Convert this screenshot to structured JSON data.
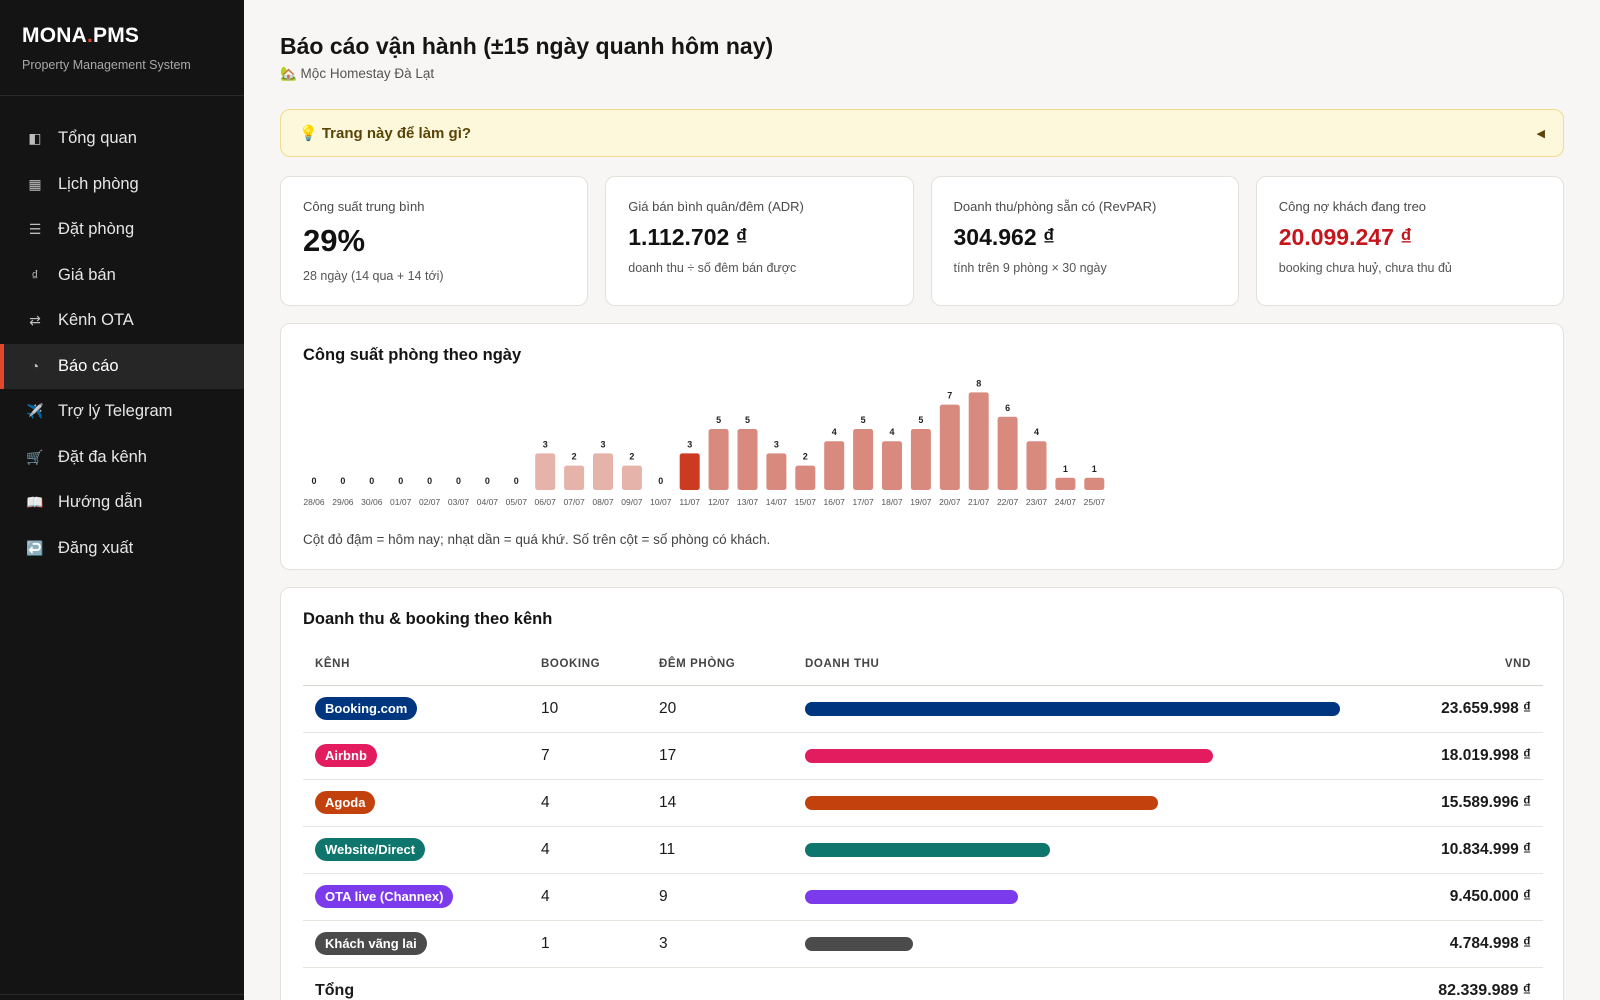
{
  "brand": {
    "name_main": "MONA",
    "name_dot": ".",
    "name_suffix": "PMS",
    "subtitle": "Property Management System"
  },
  "nav": [
    {
      "label": "Tổng quan",
      "icon": "◧",
      "icon_name": "dashboard-icon",
      "active": false
    },
    {
      "label": "Lịch phòng",
      "icon": "▦",
      "icon_name": "calendar-icon",
      "active": false
    },
    {
      "label": "Đặt phòng",
      "icon": "☰",
      "icon_name": "list-icon",
      "active": false
    },
    {
      "label": "Giá bán",
      "icon": "₫",
      "icon_name": "price-icon",
      "active": false
    },
    {
      "label": "Kênh OTA",
      "icon": "⇄",
      "icon_name": "swap-icon",
      "active": false
    },
    {
      "label": "Báo cáo",
      "icon": "◔",
      "icon_name": "pie-chart-icon",
      "active": true
    },
    {
      "label": "Trợ lý Telegram",
      "icon": "✈️",
      "icon_name": "plane-icon",
      "active": false
    },
    {
      "label": "Đặt đa kênh",
      "icon": "🛒",
      "icon_name": "cart-icon",
      "active": false
    },
    {
      "label": "Hướng dẫn",
      "icon": "📖",
      "icon_name": "book-icon",
      "active": false
    },
    {
      "label": "Đăng xuất",
      "icon": "↩️",
      "icon_name": "logout-icon",
      "active": false
    }
  ],
  "header": {
    "title": "Báo cáo vận hành (±15 ngày quanh hôm nay)",
    "property": "🏡 Mộc Homestay Đà Lạt"
  },
  "help": {
    "text": "💡 Trang này để làm gì?",
    "caret": "◀"
  },
  "kpis": [
    {
      "label": "Công suất trung bình",
      "value": "29%",
      "note": "28 ngày (14 qua + 14 tới)",
      "style": "big"
    },
    {
      "label": "Giá bán bình quân/đêm (ADR)",
      "value": "1.112.702 ₫",
      "note": "doanh thu ÷ số đêm bán được",
      "style": "normal"
    },
    {
      "label": "Doanh thu/phòng sẵn có (RevPAR)",
      "value": "304.962 ₫",
      "note": "tính trên 9 phòng × 30 ngày",
      "style": "normal"
    },
    {
      "label": "Công nợ khách đang treo",
      "value": "20.099.247 ₫",
      "note": "booking chưa huỷ, chưa thu đủ",
      "style": "red"
    }
  ],
  "occupancy": {
    "title": "Công suất phòng theo ngày",
    "note": "Cột đỏ đậm = hôm nay; nhạt dần = quá khứ. Số trên cột = số phòng có khách."
  },
  "chart_data": {
    "type": "bar",
    "categories": [
      "28/06",
      "29/06",
      "30/06",
      "01/07",
      "02/07",
      "03/07",
      "04/07",
      "05/07",
      "06/07",
      "07/07",
      "08/07",
      "09/07",
      "10/07",
      "11/07",
      "12/07",
      "13/07",
      "14/07",
      "15/07",
      "16/07",
      "17/07",
      "18/07",
      "19/07",
      "20/07",
      "21/07",
      "22/07",
      "23/07",
      "24/07",
      "25/07"
    ],
    "values": [
      0,
      0,
      0,
      0,
      0,
      0,
      0,
      0,
      3,
      2,
      3,
      2,
      0,
      3,
      5,
      5,
      3,
      2,
      4,
      5,
      4,
      5,
      7,
      8,
      6,
      4,
      1,
      1
    ],
    "today_index": 13,
    "colors": {
      "past": "#e6b3aa",
      "today": "#cc3a22",
      "future": "#d98a7e"
    },
    "grid": false,
    "legend": "none"
  },
  "channels": {
    "title": "Doanh thu & booking theo kênh",
    "headers": {
      "channel": "KÊNH",
      "booking": "BOOKING",
      "nights": "ĐÊM PHÒNG",
      "revenue": "DOANH THU",
      "vnd": "VND"
    },
    "rows": [
      {
        "name": "Booking.com",
        "color": "#003580",
        "booking": "10",
        "nights": "20",
        "amount": "23.659.998 ₫",
        "share": 1.0
      },
      {
        "name": "Airbnb",
        "color": "#e31c5f",
        "booking": "7",
        "nights": "17",
        "amount": "18.019.998 ₫",
        "share": 0.762
      },
      {
        "name": "Agoda",
        "color": "#c2410c",
        "booking": "4",
        "nights": "14",
        "amount": "15.589.996 ₫",
        "share": 0.659
      },
      {
        "name": "Website/Direct",
        "color": "#0f766e",
        "booking": "4",
        "nights": "11",
        "amount": "10.834.999 ₫",
        "share": 0.458
      },
      {
        "name": "OTA live (Channex)",
        "color": "#7c3aed",
        "booking": "4",
        "nights": "9",
        "amount": "9.450.000 ₫",
        "share": 0.399
      },
      {
        "name": "Khách vãng lai",
        "color": "#4b4b4b",
        "booking": "1",
        "nights": "3",
        "amount": "4.784.998 ₫",
        "share": 0.202
      }
    ],
    "total": {
      "label": "Tổng",
      "amount": "82.339.989 ₫"
    }
  }
}
